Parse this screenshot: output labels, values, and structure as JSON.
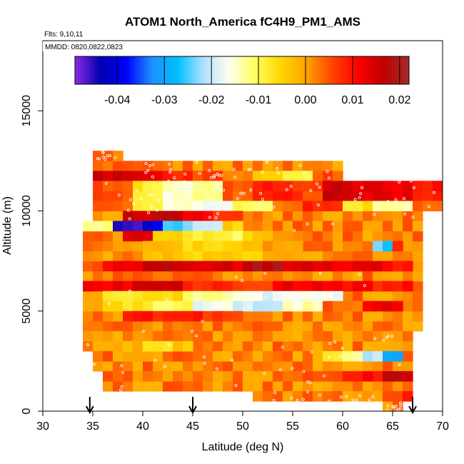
{
  "chart_data": {
    "type": "heatmap",
    "title": "ATOM1 North_America fC4H9_PM1_AMS",
    "flights_label": "Flts: 9,10,11",
    "dates_label": "MMDD: 0820,0822,0823",
    "xlabel": "Latitude (deg N)",
    "ylabel": "Altitude (m)",
    "xlim": [
      30,
      70
    ],
    "ylim": [
      0,
      18500
    ],
    "x_ticks": [
      "30",
      "35",
      "40",
      "45",
      "50",
      "55",
      "60",
      "65",
      "70"
    ],
    "y_ticks": [
      "0",
      "5000",
      "10000",
      "15000"
    ],
    "colorbar": {
      "range": [
        -0.049,
        0.022
      ],
      "ticks": [
        "-0.04",
        "-0.03",
        "-0.02",
        "-0.01",
        "0.00",
        "0.01",
        "0.02"
      ],
      "tick_values": [
        -0.04,
        -0.03,
        -0.02,
        -0.01,
        0.0,
        0.01,
        0.02
      ],
      "colors": [
        "#8a2be2",
        "#0000b0",
        "#0000ff",
        "#1e90ff",
        "#00bfff",
        "#b0e0ff",
        "#fffff0",
        "#ffff60",
        "#ffd700",
        "#ffa500",
        "#ff4500",
        "#ff0000",
        "#c00000",
        "#a52a2a"
      ]
    },
    "arrow_latitudes": [
      34.7,
      45,
      67
    ],
    "background_value": 0.002,
    "rows": [
      {
        "alt": [
          12500,
          13000
        ],
        "lat": [
          35,
          38
        ],
        "values": [
          0.003
        ]
      },
      {
        "alt": [
          11500,
          12000
        ],
        "lat": [
          35,
          60
        ],
        "values": [
          0.015,
          0.012,
          0.008,
          0.006,
          0.003,
          -0.004,
          -0.01,
          0.005
        ]
      },
      {
        "alt": [
          10500,
          11500
        ],
        "lat": [
          35,
          70
        ],
        "values": [
          0.005,
          -0.008,
          -0.015,
          -0.012,
          0.004,
          0.01,
          0.006,
          0.016,
          0.014,
          0.012,
          0.009
        ]
      },
      {
        "alt": [
          10000,
          10500
        ],
        "lat": [
          35,
          70
        ],
        "values": [
          0.004,
          -0.01,
          -0.014,
          -0.018,
          -0.01,
          0.003,
          0.008,
          -0.007,
          -0.012,
          0.004
        ]
      },
      {
        "alt": [
          9500,
          10000
        ],
        "lat": [
          38,
          50
        ],
        "values": [
          0.016,
          0.018,
          0.012,
          0.006
        ]
      },
      {
        "alt": [
          9000,
          9500
        ],
        "lat": [
          34,
          50
        ],
        "values": [
          -0.012,
          -0.045,
          -0.04,
          -0.025,
          -0.018,
          -0.005
        ]
      },
      {
        "alt": [
          8500,
          9000
        ],
        "lat": [
          38,
          56
        ],
        "values": [
          0.014,
          -0.006,
          -0.008,
          -0.01,
          -0.004,
          0.002
        ]
      },
      {
        "alt": [
          8000,
          8500
        ],
        "lat": [
          63,
          66
        ],
        "values": [
          -0.025,
          0.008
        ]
      },
      {
        "alt": [
          7500,
          8500
        ],
        "lat": [
          40,
          56
        ],
        "values": [
          -0.003,
          -0.005,
          -0.004,
          0.001
        ]
      },
      {
        "alt": [
          7000,
          7500
        ],
        "lat": [
          36,
          67
        ],
        "values": [
          0.012,
          0.016,
          0.015,
          0.014,
          0.018,
          0.015,
          0.012,
          0.013,
          0.009
        ]
      },
      {
        "alt": [
          6000,
          6500
        ],
        "lat": [
          34,
          67
        ],
        "values": [
          0.012,
          0.016,
          0.008,
          0.006,
          0.012,
          0.011,
          0.009
        ]
      },
      {
        "alt": [
          5500,
          6000
        ],
        "lat": [
          36,
          60
        ],
        "values": [
          -0.008,
          -0.006,
          -0.012,
          -0.015,
          -0.018,
          -0.016
        ]
      },
      {
        "alt": [
          5000,
          5500
        ],
        "lat": [
          36,
          66
        ],
        "values": [
          -0.006,
          -0.01,
          -0.017,
          -0.02,
          -0.014,
          0.004,
          0.012
        ]
      },
      {
        "alt": [
          4500,
          5000
        ],
        "lat": [
          38,
          50
        ],
        "values": [
          0.009,
          0.008,
          0.006
        ]
      },
      {
        "alt": [
          3000,
          3500
        ],
        "lat": [
          37,
          45
        ],
        "values": [
          -0.002,
          -0.006,
          -0.004
        ]
      },
      {
        "alt": [
          2500,
          3000
        ],
        "lat": [
          58,
          66
        ],
        "values": [
          -0.006,
          -0.012,
          -0.02,
          -0.03
        ]
      },
      {
        "alt": [
          1500,
          2000
        ],
        "lat": [
          56,
          67
        ],
        "values": [
          0.004,
          0.01,
          0.016
        ]
      },
      {
        "alt": [
          500,
          1000
        ],
        "lat": [
          64,
          67
        ],
        "values": [
          0.004,
          0.008
        ]
      }
    ]
  }
}
